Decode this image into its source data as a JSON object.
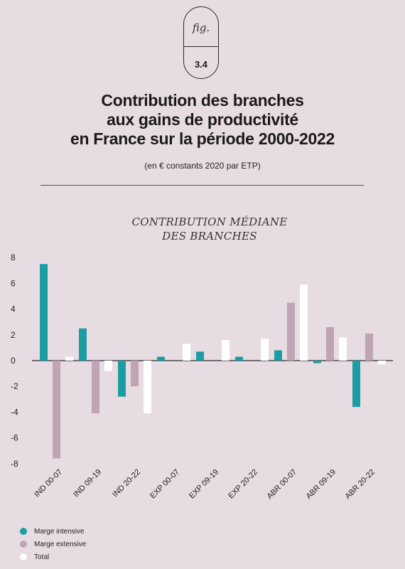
{
  "figure": {
    "label": "fig.",
    "number": "3.4"
  },
  "title_lines": [
    "Contribution des branches",
    "aux gains de productivité",
    "en France sur la période 2000-2022"
  ],
  "subtitle": "(en € constants 2020 par ETP)",
  "chart_title_lines": [
    "CONTRIBUTION MÉDIANE",
    "DES BRANCHES"
  ],
  "chart_data": {
    "type": "bar",
    "title": "CONTRIBUTION MÉDIANE DES BRANCHES",
    "categories": [
      "IND 00-07",
      "IND 09-19",
      "IND 20-22",
      "EXP 00-07",
      "EXP 09-19",
      "EXP 20-22",
      "ABR 00-07",
      "ABR 09-19",
      "ABR 20-22"
    ],
    "series": [
      {
        "name": "Marge intensive",
        "color": "#1a9ea3",
        "values": [
          7.5,
          2.5,
          -2.8,
          0.3,
          0.7,
          0.3,
          0.8,
          -0.2,
          -3.6
        ]
      },
      {
        "name": "Marge extensive",
        "color": "#bfa4b4",
        "values": [
          -7.6,
          -4.1,
          -2.0,
          0.0,
          0.0,
          0.0,
          4.5,
          2.6,
          2.1
        ]
      },
      {
        "name": "Total",
        "color": "#ffffff",
        "values": [
          0.3,
          -0.8,
          -4.1,
          1.3,
          1.6,
          1.7,
          5.9,
          1.8,
          -0.3
        ]
      }
    ],
    "yticks": [
      8,
      6,
      4,
      2,
      0,
      -2,
      -4,
      -6,
      -8
    ],
    "ylim": [
      -8,
      8
    ],
    "grid": false,
    "legend_position": "bottom-left"
  }
}
